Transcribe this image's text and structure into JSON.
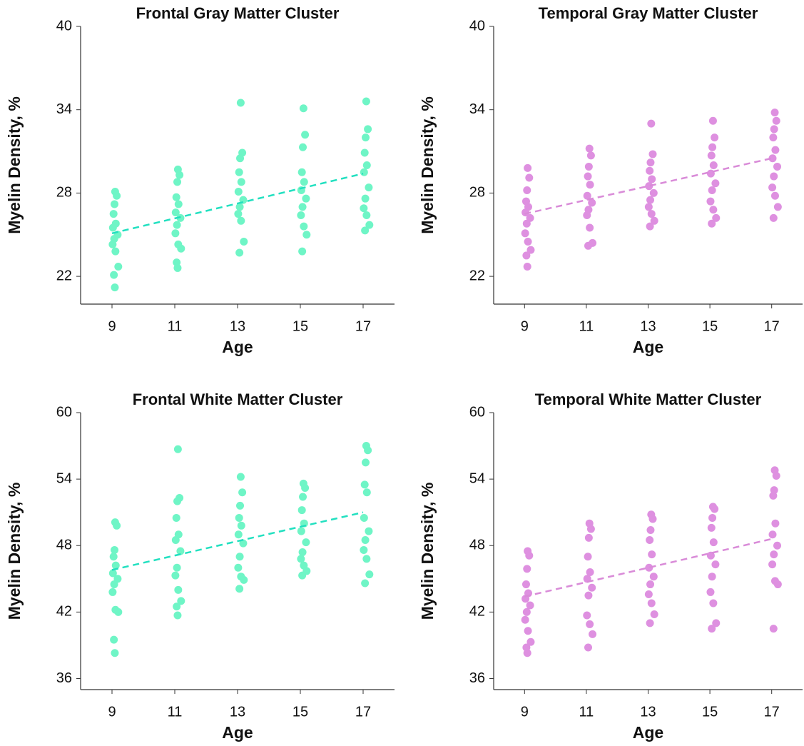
{
  "chart_data": [
    {
      "type": "scatter",
      "title": "Frontal Gray Matter Cluster",
      "xlabel": "Age",
      "ylabel": "Myelin Density, %",
      "xlim": [
        8,
        18
      ],
      "xticks": [
        9,
        11,
        13,
        15,
        17
      ],
      "ylim": [
        20,
        40
      ],
      "yticks": [
        22,
        28,
        34,
        40
      ],
      "grid": false,
      "series": [
        {
          "color": "#6ff5c6",
          "x": [
            9.1,
            9.15,
            9.08,
            9.05,
            9.12,
            9.03,
            9.18,
            9.07,
            9.02,
            9.11,
            9.2,
            9.06,
            9.09,
            11.1,
            11.15,
            11.08,
            11.05,
            11.12,
            11.03,
            11.18,
            11.07,
            11.02,
            11.11,
            11.2,
            11.06,
            11.09,
            13.1,
            13.15,
            13.08,
            13.05,
            13.12,
            13.03,
            13.18,
            13.07,
            13.02,
            13.11,
            13.2,
            13.06,
            15.1,
            15.15,
            15.08,
            15.05,
            15.12,
            15.03,
            15.18,
            15.07,
            15.02,
            15.11,
            15.2,
            15.06,
            17.1,
            17.15,
            17.08,
            17.05,
            17.12,
            17.03,
            17.18,
            17.07,
            17.02,
            17.11,
            17.2,
            17.06
          ],
          "values": [
            28.1,
            27.8,
            27.2,
            26.5,
            25.8,
            25.5,
            25,
            24.7,
            24.3,
            23.8,
            22.7,
            22.1,
            21.2,
            29.7,
            29.3,
            28.8,
            27.7,
            27.2,
            26.6,
            26.2,
            25.7,
            25.1,
            24.3,
            24,
            23,
            22.6,
            34.5,
            30.9,
            30.5,
            29.5,
            28.8,
            28.1,
            27.5,
            27,
            26.5,
            26,
            24.5,
            23.7,
            34.1,
            32.2,
            31.3,
            29.5,
            28.8,
            28.2,
            27.6,
            27,
            26.4,
            25.6,
            25,
            23.8,
            34.6,
            32.6,
            32,
            30.9,
            30,
            29.5,
            28.4,
            27.6,
            26.9,
            26.4,
            25.7,
            25.3
          ]
        }
      ],
      "trend": {
        "color": "#22e0c0",
        "x": [
          9,
          17
        ],
        "values": [
          25.1,
          29.4
        ]
      }
    },
    {
      "type": "scatter",
      "title": "Temporal Gray Matter Cluster",
      "xlabel": "Age",
      "ylabel": "Myelin Density, %",
      "xlim": [
        8,
        18
      ],
      "xticks": [
        9,
        11,
        13,
        15,
        17
      ],
      "ylim": [
        20,
        40
      ],
      "yticks": [
        22,
        28,
        34,
        40
      ],
      "grid": false,
      "series": [
        {
          "color": "#de90e0",
          "x": [
            9.1,
            9.15,
            9.08,
            9.05,
            9.12,
            9.03,
            9.18,
            9.07,
            9.02,
            9.11,
            9.2,
            9.06,
            9.09,
            11.1,
            11.15,
            11.08,
            11.05,
            11.12,
            11.03,
            11.18,
            11.07,
            11.02,
            11.11,
            11.2,
            11.06,
            13.1,
            13.15,
            13.08,
            13.05,
            13.12,
            13.03,
            13.18,
            13.07,
            13.02,
            13.11,
            13.2,
            13.06,
            15.1,
            15.15,
            15.08,
            15.05,
            15.12,
            15.03,
            15.18,
            15.07,
            15.02,
            15.11,
            15.2,
            15.06,
            17.1,
            17.15,
            17.08,
            17.05,
            17.12,
            17.03,
            17.18,
            17.07,
            17.02,
            17.11,
            17.2,
            17.06
          ],
          "values": [
            29.8,
            29.1,
            28.2,
            27.4,
            27,
            26.6,
            26.2,
            25.8,
            25.1,
            24.5,
            23.9,
            23.5,
            22.7,
            31.2,
            30.7,
            29.9,
            29.2,
            28.6,
            27.8,
            27.3,
            26.8,
            26.4,
            25.5,
            24.4,
            24.2,
            33,
            30.8,
            30.2,
            29.6,
            29,
            28.5,
            28,
            27.5,
            27,
            26.5,
            26,
            25.6,
            33.2,
            32,
            31.3,
            30.7,
            30,
            29.4,
            28.7,
            28.2,
            27.4,
            26.8,
            26.2,
            25.8,
            33.8,
            33.2,
            32.6,
            32,
            31.1,
            30.5,
            29.9,
            29.2,
            28.4,
            27.8,
            27,
            26.2
          ]
        }
      ],
      "trend": {
        "color": "#d98bd8",
        "x": [
          9,
          17
        ],
        "values": [
          26.5,
          30.5
        ]
      }
    },
    {
      "type": "scatter",
      "title": "Frontal White Matter Cluster",
      "xlabel": "Age",
      "ylabel": "Myelin Density, %",
      "xlim": [
        8,
        18
      ],
      "xticks": [
        9,
        11,
        13,
        15,
        17
      ],
      "ylim": [
        35,
        60
      ],
      "yticks": [
        36,
        42,
        48,
        54,
        60
      ],
      "grid": false,
      "series": [
        {
          "color": "#6ff5c6",
          "x": [
            9.1,
            9.15,
            9.08,
            9.05,
            9.12,
            9.03,
            9.18,
            9.07,
            9.02,
            9.11,
            9.2,
            9.06,
            9.09,
            11.1,
            11.15,
            11.08,
            11.05,
            11.12,
            11.03,
            11.18,
            11.07,
            11.02,
            11.11,
            11.2,
            11.06,
            11.09,
            13.1,
            13.15,
            13.08,
            13.05,
            13.12,
            13.03,
            13.18,
            13.07,
            13.02,
            13.11,
            13.2,
            13.06,
            15.1,
            15.15,
            15.08,
            15.05,
            15.12,
            15.03,
            15.18,
            15.07,
            15.02,
            15.11,
            15.2,
            15.06,
            17.1,
            17.15,
            17.08,
            17.05,
            17.12,
            17.03,
            17.18,
            17.07,
            17.02,
            17.11,
            17.2,
            17.06
          ],
          "values": [
            50.1,
            49.8,
            47.6,
            47,
            46.2,
            45.5,
            45,
            44.5,
            43.8,
            42.2,
            42,
            39.5,
            38.3,
            56.7,
            52.3,
            52,
            50.5,
            49,
            48.5,
            47.5,
            46,
            45.3,
            44,
            43,
            42.5,
            41.7,
            54.2,
            52.8,
            51.6,
            50.5,
            49.8,
            49,
            48.2,
            47,
            46,
            45.2,
            44.9,
            44.1,
            53.6,
            53.2,
            52.4,
            51.2,
            50,
            49.3,
            48.3,
            47.4,
            46.8,
            46.2,
            45.7,
            45.3,
            57,
            56.6,
            55.5,
            53.5,
            52.8,
            50.5,
            49.3,
            48.5,
            47.6,
            46.8,
            45.4,
            44.6
          ]
        }
      ],
      "trend": {
        "color": "#22e0c0",
        "x": [
          9,
          17
        ],
        "values": [
          45.8,
          51.0
        ]
      }
    },
    {
      "type": "scatter",
      "title": "Temporal White Matter Cluster",
      "xlabel": "Age",
      "ylabel": "Myelin Density, %",
      "xlim": [
        8,
        18
      ],
      "xticks": [
        9,
        11,
        13,
        15,
        17
      ],
      "ylim": [
        35,
        60
      ],
      "yticks": [
        36,
        42,
        48,
        54,
        60
      ],
      "grid": false,
      "series": [
        {
          "color": "#de90e0",
          "x": [
            9.1,
            9.15,
            9.08,
            9.05,
            9.12,
            9.03,
            9.18,
            9.07,
            9.02,
            9.11,
            9.2,
            9.06,
            9.09,
            11.1,
            11.15,
            11.08,
            11.05,
            11.12,
            11.03,
            11.18,
            11.07,
            11.02,
            11.11,
            11.2,
            11.06,
            13.1,
            13.15,
            13.08,
            13.05,
            13.12,
            13.03,
            13.18,
            13.07,
            13.02,
            13.11,
            13.2,
            13.06,
            15.1,
            15.15,
            15.08,
            15.05,
            15.12,
            15.03,
            15.18,
            15.07,
            15.02,
            15.11,
            15.2,
            15.06,
            17.1,
            17.15,
            17.08,
            17.05,
            17.12,
            17.03,
            17.18,
            17.07,
            17.02,
            17.11,
            17.2,
            17.06
          ],
          "values": [
            47.5,
            47.1,
            45.9,
            44.5,
            43.7,
            43.2,
            42.6,
            42,
            41.3,
            40.3,
            39.3,
            38.8,
            38.3,
            50,
            49.5,
            48.7,
            47,
            45.6,
            45,
            44.2,
            43.5,
            41.7,
            40.9,
            40,
            38.8,
            50.8,
            50.4,
            49.4,
            48.5,
            47.2,
            46,
            45.2,
            44.5,
            43.6,
            42.8,
            41.8,
            41,
            51.5,
            51.3,
            50.5,
            49.6,
            48.3,
            47.1,
            46.3,
            45.2,
            43.8,
            42.8,
            41,
            40.5,
            54.8,
            54.3,
            53,
            52.5,
            50,
            49,
            48,
            47.2,
            46.3,
            44.8,
            44.5,
            40.5
          ]
        }
      ],
      "trend": {
        "color": "#d98bd8",
        "x": [
          9,
          17
        ],
        "values": [
          43.4,
          48.6
        ]
      }
    }
  ]
}
